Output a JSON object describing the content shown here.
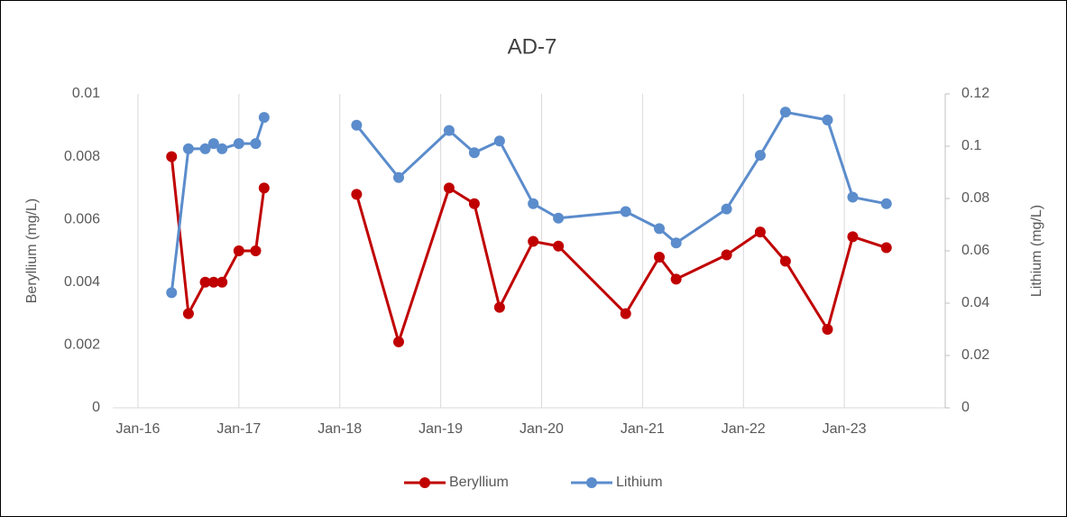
{
  "chart_data": {
    "type": "line",
    "title": "AD-7",
    "y_label": "Beryllium (mg/L)",
    "y2_label": "Lithium (mg/L)",
    "x": [
      "2016-05",
      "2016-07",
      "2016-09",
      "2016-10",
      "2016-11",
      "2017-01",
      "2017-03",
      "2017-04",
      null,
      "2018-03",
      "2018-08",
      "2019-02",
      "2019-05",
      "2019-08",
      "2019-12",
      "2020-03",
      "2020-11",
      "2021-03",
      "2021-05",
      "2021-11",
      "2022-03",
      "2022-06",
      "2022-11",
      "2023-02",
      "2023-06"
    ],
    "series": [
      {
        "name": "Beryllium",
        "color": "#c00000",
        "axis": "y",
        "values": [
          0.008,
          0.003,
          0.004,
          0.004,
          0.004,
          0.005,
          0.005,
          0.007,
          null,
          0.0068,
          0.0021,
          0.007,
          0.0065,
          0.0032,
          0.0053,
          0.00515,
          0.003,
          0.0048,
          0.0041,
          0.00487,
          0.0056,
          0.00467,
          0.0025,
          0.00545,
          0.0051
        ]
      },
      {
        "name": "Lithium",
        "color": "#5b8ccc",
        "axis": "y2",
        "values": [
          0.044,
          0.099,
          0.099,
          0.101,
          0.099,
          0.101,
          0.101,
          0.111,
          null,
          0.108,
          0.088,
          0.106,
          0.0975,
          0.102,
          0.078,
          0.0725,
          0.075,
          0.0685,
          0.063,
          0.076,
          0.0965,
          0.113,
          0.11,
          0.0805,
          0.078
        ]
      }
    ],
    "xlim": [
      "2015-10",
      "2024-01"
    ],
    "xticks": [
      {
        "value": "2016-01",
        "label": "Jan-16"
      },
      {
        "value": "2017-01",
        "label": "Jan-17"
      },
      {
        "value": "2018-01",
        "label": "Jan-18"
      },
      {
        "value": "2019-01",
        "label": "Jan-19"
      },
      {
        "value": "2020-01",
        "label": "Jan-20"
      },
      {
        "value": "2021-01",
        "label": "Jan-21"
      },
      {
        "value": "2022-01",
        "label": "Jan-22"
      },
      {
        "value": "2023-01",
        "label": "Jan-23"
      }
    ],
    "ylim": [
      0,
      0.01
    ],
    "yticks": [
      0,
      0.002,
      0.004,
      0.006,
      0.008,
      0.01
    ],
    "y2lim": [
      0,
      0.12
    ],
    "y2ticks": [
      0,
      0.02,
      0.04,
      0.06,
      0.08,
      0.1,
      0.12
    ],
    "grid": "x",
    "legend": "bottom"
  }
}
